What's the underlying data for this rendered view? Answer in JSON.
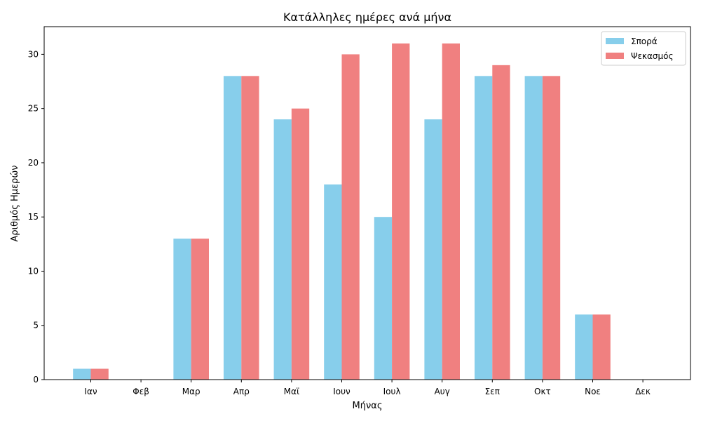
{
  "chart_data": {
    "type": "bar",
    "title": "Κατάλληλες ημέρες ανά μήνα",
    "xlabel": "Μήνας",
    "ylabel": "Αριθμός Ημερών",
    "categories": [
      "Ιαν",
      "Φεβ",
      "Μαρ",
      "Απρ",
      "Μαϊ",
      "Ιουν",
      "Ιουλ",
      "Αυγ",
      "Σεπ",
      "Οκτ",
      "Νοε",
      "Δεκ"
    ],
    "series": [
      {
        "name": "Σπορά",
        "color": "#87CEEB",
        "values": [
          1,
          0,
          13,
          28,
          24,
          18,
          15,
          24,
          28,
          28,
          6,
          0
        ]
      },
      {
        "name": "Ψεκασμός",
        "color": "#F08080",
        "values": [
          1,
          0,
          13,
          28,
          25,
          30,
          31,
          31,
          29,
          28,
          6,
          0
        ]
      }
    ],
    "ylim": [
      0,
      32.55
    ],
    "yticks": [
      0,
      5,
      10,
      15,
      20,
      25,
      30
    ],
    "grid": false,
    "legend_position": "top-right"
  }
}
